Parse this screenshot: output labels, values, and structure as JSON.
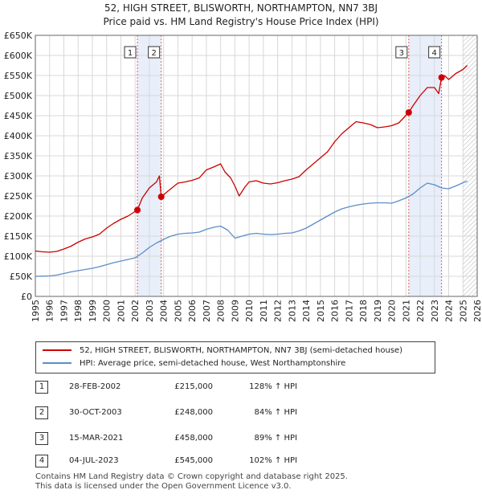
{
  "header": {
    "title": "52, HIGH STREET, BLISWORTH, NORTHAMPTON, NN7 3BJ",
    "subtitle": "Price paid vs. HM Land Registry's House Price Index (HPI)"
  },
  "chart_data": {
    "type": "line",
    "title": "52, HIGH STREET, BLISWORTH, NORTHAMPTON, NN7 3BJ",
    "subtitle": "Price paid vs. HM Land Registry's House Price Index (HPI)",
    "xlim": [
      1995,
      2026
    ],
    "ylim": [
      0,
      650000
    ],
    "x_ticks": [
      "1995",
      "1996",
      "1997",
      "1998",
      "1999",
      "2000",
      "2001",
      "2002",
      "2003",
      "2004",
      "2005",
      "2006",
      "2007",
      "2008",
      "2009",
      "2010",
      "2011",
      "2012",
      "2013",
      "2014",
      "2015",
      "2016",
      "2017",
      "2018",
      "2019",
      "2020",
      "2021",
      "2022",
      "2023",
      "2024",
      "2025",
      "2026"
    ],
    "y_ticks": [
      {
        "value": 0,
        "label": "£0"
      },
      {
        "value": 50000,
        "label": "£50K"
      },
      {
        "value": 100000,
        "label": "£100K"
      },
      {
        "value": 150000,
        "label": "£150K"
      },
      {
        "value": 200000,
        "label": "£200K"
      },
      {
        "value": 250000,
        "label": "£250K"
      },
      {
        "value": 300000,
        "label": "£300K"
      },
      {
        "value": 350000,
        "label": "£350K"
      },
      {
        "value": 400000,
        "label": "£400K"
      },
      {
        "value": 450000,
        "label": "£450K"
      },
      {
        "value": 500000,
        "label": "£500K"
      },
      {
        "value": 550000,
        "label": "£550K"
      },
      {
        "value": 600000,
        "label": "£600K"
      },
      {
        "value": 650000,
        "label": "£650K"
      }
    ],
    "grid": true,
    "shaded_periods": [
      [
        2002.16,
        2003.83
      ],
      [
        2021.2,
        2023.5
      ]
    ],
    "hatched_from": 2025.0,
    "series": [
      {
        "name": "52, HIGH STREET, BLISWORTH, NORTHAMPTON, NN7 3BJ (semi-detached house)",
        "color": "#cc0000",
        "x": [
          1995.0,
          1995.5,
          1996.0,
          1996.5,
          1997.0,
          1997.5,
          1998.0,
          1998.5,
          1999.0,
          1999.5,
          2000.0,
          2000.5,
          2001.0,
          2001.5,
          2002.16,
          2002.5,
          2003.0,
          2003.5,
          2003.7,
          2003.83,
          2004.3,
          2005.0,
          2005.5,
          2006.0,
          2006.5,
          2007.0,
          2007.5,
          2008.0,
          2008.3,
          2008.7,
          2009.0,
          2009.3,
          2009.7,
          2010.0,
          2010.5,
          2011.0,
          2011.5,
          2012.0,
          2012.5,
          2013.0,
          2013.5,
          2014.0,
          2014.5,
          2015.0,
          2015.5,
          2016.0,
          2016.5,
          2017.0,
          2017.5,
          2018.0,
          2018.5,
          2019.0,
          2019.5,
          2020.0,
          2020.5,
          2021.2,
          2021.5,
          2022.0,
          2022.5,
          2023.0,
          2023.3,
          2023.5,
          2023.7,
          2024.0,
          2024.5,
          2025.0,
          2025.3
        ],
        "y": [
          113000,
          111000,
          110000,
          112000,
          118000,
          125000,
          135000,
          143000,
          148000,
          155000,
          170000,
          182000,
          192000,
          200000,
          215000,
          245000,
          270000,
          285000,
          300000,
          248000,
          262000,
          282000,
          285000,
          289000,
          295000,
          315000,
          322000,
          330000,
          310000,
          295000,
          275000,
          250000,
          272000,
          285000,
          288000,
          282000,
          280000,
          283000,
          288000,
          292000,
          298000,
          315000,
          330000,
          345000,
          360000,
          385000,
          405000,
          420000,
          435000,
          432000,
          428000,
          420000,
          422000,
          425000,
          432000,
          458000,
          475000,
          500000,
          520000,
          520000,
          505000,
          545000,
          550000,
          540000,
          555000,
          565000,
          575000
        ]
      },
      {
        "name": "HPI: Average price, semi-detached house, West Northamptonshire",
        "color": "#5b8ec8",
        "x": [
          1995.0,
          1995.5,
          1996.0,
          1996.5,
          1997.0,
          1997.5,
          1998.0,
          1998.5,
          1999.0,
          1999.5,
          2000.0,
          2000.5,
          2001.0,
          2001.5,
          2002.0,
          2002.5,
          2003.0,
          2003.5,
          2004.0,
          2004.5,
          2005.0,
          2005.5,
          2006.0,
          2006.5,
          2007.0,
          2007.5,
          2008.0,
          2008.5,
          2009.0,
          2009.5,
          2010.0,
          2010.5,
          2011.0,
          2011.5,
          2012.0,
          2012.5,
          2013.0,
          2013.5,
          2014.0,
          2014.5,
          2015.0,
          2015.5,
          2016.0,
          2016.5,
          2017.0,
          2017.5,
          2018.0,
          2018.5,
          2019.0,
          2019.5,
          2020.0,
          2020.5,
          2021.0,
          2021.5,
          2022.0,
          2022.5,
          2023.0,
          2023.5,
          2024.0,
          2024.5,
          2025.0,
          2025.3
        ],
        "y": [
          50000,
          50500,
          51000,
          53000,
          57000,
          61000,
          64000,
          67000,
          70000,
          74000,
          79000,
          84000,
          88000,
          92000,
          96000,
          108000,
          122000,
          133000,
          142000,
          150000,
          155000,
          157000,
          158000,
          160000,
          167000,
          172000,
          175000,
          165000,
          145000,
          150000,
          155000,
          157000,
          155000,
          154000,
          155000,
          157000,
          158000,
          163000,
          170000,
          180000,
          190000,
          200000,
          210000,
          218000,
          223000,
          227000,
          230000,
          232000,
          233000,
          233000,
          232000,
          238000,
          245000,
          255000,
          270000,
          282000,
          278000,
          270000,
          268000,
          275000,
          283000,
          287000
        ]
      }
    ],
    "markers": [
      {
        "label": "1",
        "x": 2002.16,
        "y": 215000
      },
      {
        "label": "2",
        "x": 2003.83,
        "y": 248000
      },
      {
        "label": "3",
        "x": 2021.2,
        "y": 458000
      },
      {
        "label": "4",
        "x": 2023.5,
        "y": 545000
      }
    ]
  },
  "legend": {
    "items": [
      {
        "label": "52, HIGH STREET, BLISWORTH, NORTHAMPTON, NN7 3BJ (semi-detached house)",
        "color": "#cc0000"
      },
      {
        "label": "HPI: Average price, semi-detached house, West Northamptonshire",
        "color": "#5b8ec8"
      }
    ]
  },
  "transactions": [
    {
      "num": "1",
      "date": "28-FEB-2002",
      "price": "£215,000",
      "hpi": "128% ↑ HPI"
    },
    {
      "num": "2",
      "date": "30-OCT-2003",
      "price": "£248,000",
      "hpi": "84% ↑ HPI"
    },
    {
      "num": "3",
      "date": "15-MAR-2021",
      "price": "£458,000",
      "hpi": "89% ↑ HPI"
    },
    {
      "num": "4",
      "date": "04-JUL-2023",
      "price": "£545,000",
      "hpi": "102% ↑ HPI"
    }
  ],
  "footer": {
    "line1": "Contains HM Land Registry data © Crown copyright and database right 2025.",
    "line2": "This data is licensed under the Open Government Licence v3.0."
  }
}
